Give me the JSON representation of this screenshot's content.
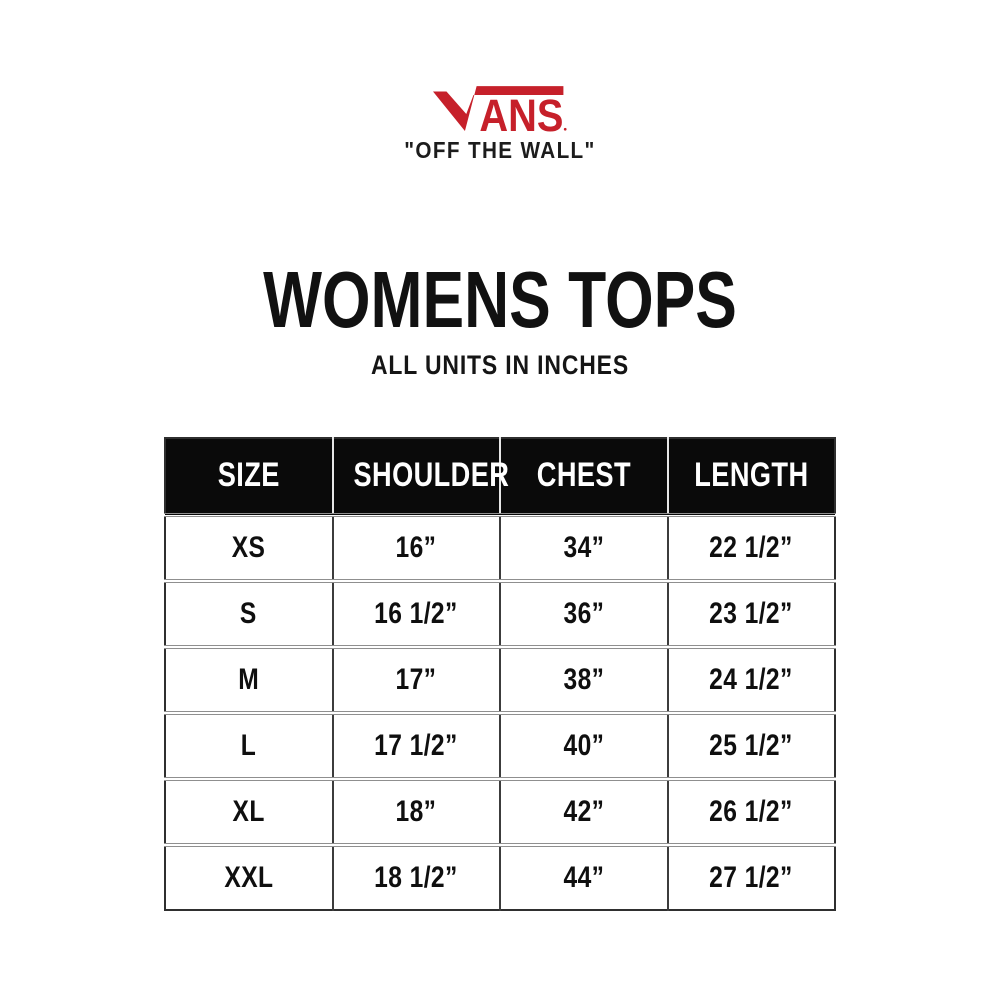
{
  "brand": {
    "logo_word": "VANS",
    "logo_v_shape": "vans-v-and-bar",
    "logo_letters": "ANS",
    "logo_color": "#C6202A",
    "tagline": "\"OFF THE WALL\""
  },
  "header": {
    "title": "WOMENS TOPS",
    "subtitle": "ALL UNITS IN INCHES"
  },
  "chart_data": {
    "type": "table",
    "title": "WOMENS TOPS",
    "units_note": "ALL UNITS IN INCHES",
    "columns": [
      "SIZE",
      "SHOULDER",
      "CHEST",
      "LENGTH"
    ],
    "rows": [
      [
        "XS",
        "16”",
        "34”",
        "22 1/2”"
      ],
      [
        "S",
        "16 1/2”",
        "36”",
        "23 1/2”"
      ],
      [
        "M",
        "17”",
        "38”",
        "24 1/2”"
      ],
      [
        "L",
        "17 1/2”",
        "40”",
        "25 1/2”"
      ],
      [
        "XL",
        "18”",
        "42”",
        "26 1/2”"
      ],
      [
        "XXL",
        "18 1/2”",
        "44”",
        "27 1/2”"
      ]
    ]
  },
  "colors": {
    "background": "#FFFFFF",
    "logo_red": "#C6202A",
    "table_header_bg": "#0A0A0A",
    "table_header_text": "#FFFFFF",
    "table_border": "#2F2F2F",
    "row_separator": "#8F8F8F",
    "body_text": "#111111"
  }
}
